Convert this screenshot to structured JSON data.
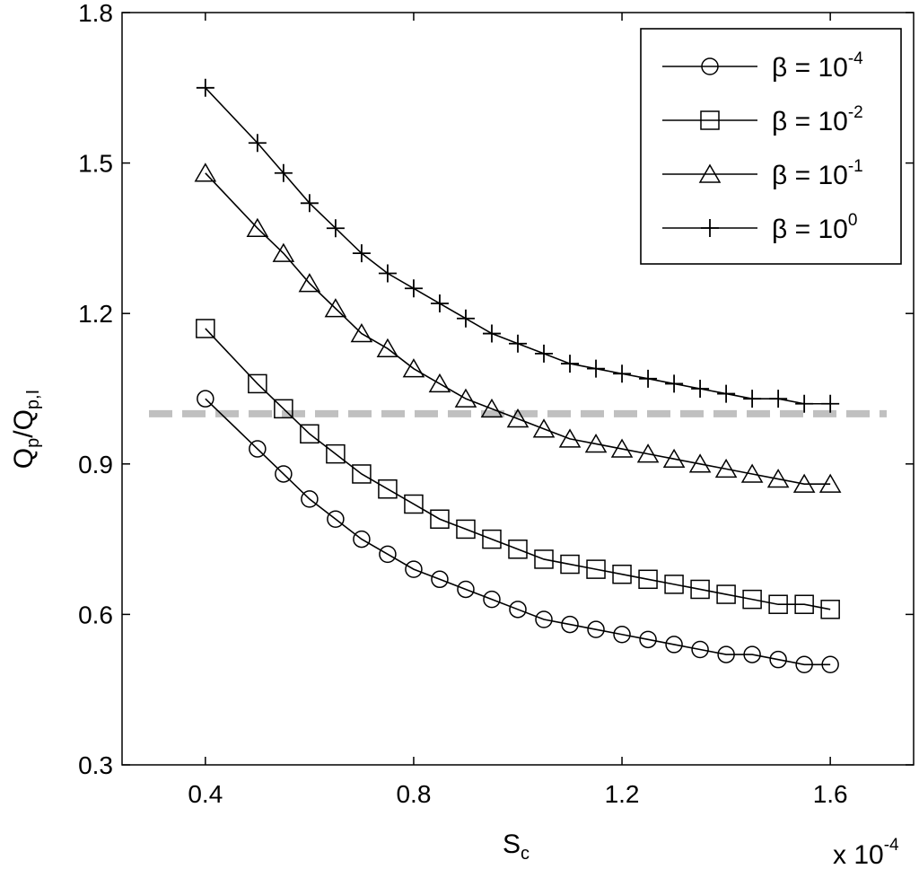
{
  "chart_data": {
    "type": "line",
    "title": "",
    "xlabel": {
      "main": "S",
      "sub": "c"
    },
    "ylabel": {
      "p1": "Q",
      "s1": "p",
      "slash": "/Q",
      "s2": "p,I"
    },
    "x_multiplier": {
      "base": "x 10",
      "exp": "-4"
    },
    "xlim": [
      0.24,
      1.76
    ],
    "ylim": [
      0.3,
      1.8
    ],
    "xticks": [
      0.4,
      0.8,
      1.2,
      1.6
    ],
    "xtick_labels": [
      "0.4",
      "0.8",
      "1.2",
      "1.6"
    ],
    "yticks": [
      0.3,
      0.6,
      0.9,
      1.2,
      1.5,
      1.8
    ],
    "ytick_labels": [
      "0.3",
      "0.6",
      "0.9",
      "1.2",
      "1.5",
      "1.8"
    ],
    "grid": false,
    "legend_position": "top-right",
    "reference_line": {
      "y": 1.0,
      "style": "dashed",
      "color": "#c0c0c0"
    },
    "x": [
      0.4,
      0.5,
      0.55,
      0.6,
      0.65,
      0.7,
      0.75,
      0.8,
      0.85,
      0.9,
      0.95,
      1.0,
      1.05,
      1.1,
      1.15,
      1.2,
      1.25,
      1.3,
      1.35,
      1.4,
      1.45,
      1.5,
      1.55,
      1.6
    ],
    "series": [
      {
        "legend": {
          "prefix": "β = 10",
          "exp": "-4"
        },
        "marker": "circle",
        "values": [
          1.03,
          0.93,
          0.88,
          0.83,
          0.79,
          0.75,
          0.72,
          0.69,
          0.67,
          0.65,
          0.63,
          0.61,
          0.59,
          0.58,
          0.57,
          0.56,
          0.55,
          0.54,
          0.53,
          0.52,
          0.52,
          0.51,
          0.5,
          0.5
        ]
      },
      {
        "legend": {
          "prefix": "β = 10",
          "exp": "-2"
        },
        "marker": "square",
        "values": [
          1.17,
          1.06,
          1.01,
          0.96,
          0.92,
          0.88,
          0.85,
          0.82,
          0.79,
          0.77,
          0.75,
          0.73,
          0.71,
          0.7,
          0.69,
          0.68,
          0.67,
          0.66,
          0.65,
          0.64,
          0.63,
          0.62,
          0.62,
          0.61
        ]
      },
      {
        "legend": {
          "prefix": "β = 10",
          "exp": "-1"
        },
        "marker": "triangle",
        "values": [
          1.48,
          1.37,
          1.32,
          1.26,
          1.21,
          1.16,
          1.13,
          1.09,
          1.06,
          1.03,
          1.01,
          0.99,
          0.97,
          0.95,
          0.94,
          0.93,
          0.92,
          0.91,
          0.9,
          0.89,
          0.88,
          0.87,
          0.86,
          0.86
        ]
      },
      {
        "legend": {
          "prefix": "β = 10",
          "exp": "0"
        },
        "marker": "plus",
        "values": [
          1.65,
          1.54,
          1.48,
          1.42,
          1.37,
          1.32,
          1.28,
          1.25,
          1.22,
          1.19,
          1.16,
          1.14,
          1.12,
          1.1,
          1.09,
          1.08,
          1.07,
          1.06,
          1.05,
          1.04,
          1.03,
          1.03,
          1.02,
          1.02
        ]
      }
    ]
  }
}
